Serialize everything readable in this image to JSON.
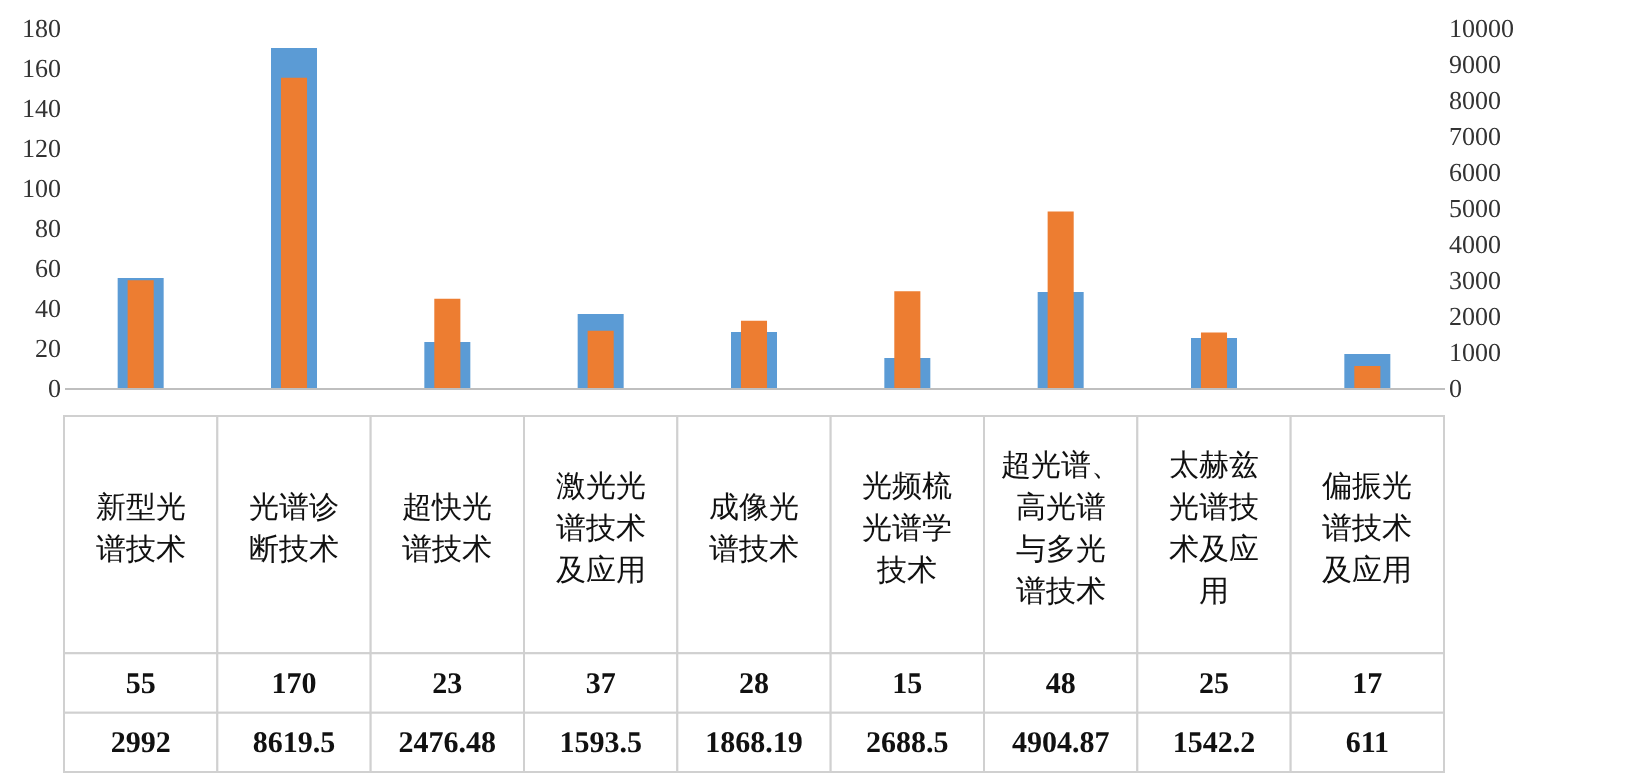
{
  "chart_data": {
    "type": "bar",
    "categories": [
      "新型光谱技术",
      "光谱诊断技术",
      "超快光谱技术",
      "激光光谱技术及应用",
      "成像光谱技术",
      "光频梳光谱学技术",
      "超光谱、高光谱与多光谱技术",
      "太赫兹光谱技术及应用",
      "偏振光谱技术及应用"
    ],
    "series": [
      {
        "color": "#5b9bd5",
        "values": [
          55,
          170,
          23,
          37,
          28,
          15,
          48,
          25,
          17
        ]
      },
      {
        "color": "#ed7d31",
        "axis": "y2",
        "values": [
          2992,
          8619.5,
          2476.48,
          1593.5,
          1868.19,
          2688.5,
          4904.87,
          1542.2,
          611
        ]
      }
    ],
    "ylim": [
      0,
      180
    ],
    "yticks": [
      0,
      20,
      40,
      60,
      80,
      100,
      120,
      140,
      160,
      180
    ],
    "y2lim": [
      0,
      10000
    ],
    "y2ticks": [
      0,
      1000,
      2000,
      3000,
      4000,
      5000,
      6000,
      7000,
      8000,
      9000,
      10000
    ],
    "data_labels": true
  }
}
